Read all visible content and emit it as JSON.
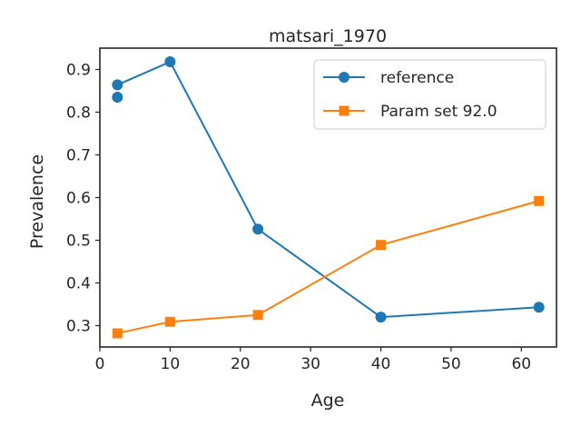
{
  "chart_data": {
    "type": "line",
    "title": "matsari_1970",
    "xlabel": "Age",
    "ylabel": "Prevalence",
    "xlim": [
      0,
      65
    ],
    "ylim": [
      0.25,
      0.95
    ],
    "xticks": [
      "0",
      "10",
      "20",
      "30",
      "40",
      "50",
      "60"
    ],
    "yticks": [
      "0.3",
      "0.4",
      "0.5",
      "0.6",
      "0.7",
      "0.8",
      "0.9"
    ],
    "grid": false,
    "legend_position": "top-right",
    "series": [
      {
        "name": "reference",
        "marker": "circle",
        "color": "#1f77b4",
        "x": [
          2.5,
          2.5,
          10,
          22.5,
          40,
          62.5
        ],
        "y": [
          0.864,
          0.835,
          0.918,
          0.526,
          0.32,
          0.343
        ],
        "line_from_index": 0,
        "line_skip_index": 1
      },
      {
        "name": "Param set 92.0",
        "marker": "square",
        "color": "#ff7f0e",
        "x": [
          2.5,
          10,
          22.5,
          40,
          62.5
        ],
        "y": [
          0.282,
          0.309,
          0.325,
          0.489,
          0.592
        ]
      }
    ]
  }
}
